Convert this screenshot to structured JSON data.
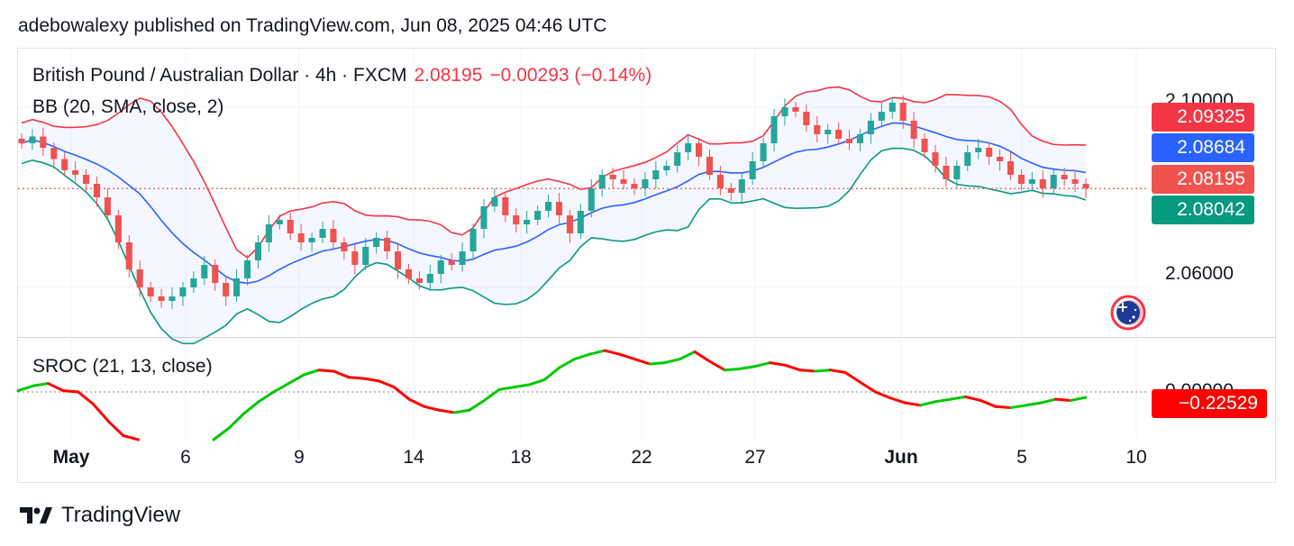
{
  "header": {
    "published_line": "adebowalexy published on TradingView.com, Jun 08, 2025 04:46 UTC"
  },
  "legend": {
    "symbol_line": "British Pound / Australian Dollar · 4h · FXCM",
    "last_price": "2.08195",
    "change": "−0.00293 (−0.14%)",
    "bb_label": "BB (20, SMA, close, 2)",
    "sroc_label": "SROC (21, 13, close)"
  },
  "price_badges": [
    {
      "label": "2.09325",
      "color": "#f23645"
    },
    {
      "label": "2.08684",
      "color": "#2962ff"
    },
    {
      "label": "2.08195",
      "color": "#ef5350"
    },
    {
      "label": "2.08042",
      "color": "#089981"
    }
  ],
  "sroc_badge": {
    "label": "−0.22529",
    "color": "#ff0000"
  },
  "y_axis_labels": {
    "upper": "2.10000",
    "lower": "2.06000",
    "sroc_zero": "0.00000"
  },
  "footer": {
    "brand": "TradingView",
    "logo": "tradingview-logo-icon"
  },
  "colors": {
    "up": "#26a69a",
    "down": "#ef5350",
    "bb_upper": "#f23645",
    "bb_basis": "#2962ff",
    "bb_lower": "#089981",
    "bb_fill": "#2962ff",
    "sroc_up": "#00c800",
    "sroc_down": "#ff0000"
  },
  "chart_data": {
    "type": "candlestick",
    "symbol": "British Pound / Australian Dollar",
    "interval": "4h",
    "x_ticks": [
      "May",
      "6",
      "9",
      "14",
      "18",
      "22",
      "27",
      "Jun",
      "5",
      "10"
    ],
    "ylim": [
      2.049,
      2.113
    ],
    "y_ticks": [
      2.06,
      2.1
    ],
    "last_close": 2.08195,
    "bollinger_bands": {
      "params": "20, SMA, close, 2",
      "upper_last": 2.09325,
      "basis_last": 2.08684,
      "lower_last": 2.08042
    },
    "close_series_approx": [
      2.092,
      2.0935,
      2.091,
      2.0885,
      2.086,
      2.085,
      2.083,
      2.08,
      2.076,
      2.07,
      2.064,
      2.06,
      2.058,
      2.057,
      2.058,
      2.06,
      2.062,
      2.065,
      2.061,
      2.058,
      2.062,
      2.066,
      2.07,
      2.074,
      2.075,
      2.072,
      2.07,
      2.071,
      2.073,
      2.07,
      2.068,
      2.065,
      2.069,
      2.071,
      2.068,
      2.064,
      2.062,
      2.061,
      2.063,
      2.066,
      2.065,
      2.068,
      2.073,
      2.078,
      2.08,
      2.076,
      2.074,
      2.075,
      2.077,
      2.079,
      2.076,
      2.072,
      2.077,
      2.082,
      2.085,
      2.084,
      2.083,
      2.082,
      2.084,
      2.086,
      2.087,
      2.09,
      2.092,
      2.089,
      2.085,
      2.082,
      2.081,
      2.084,
      2.088,
      2.092,
      2.098,
      2.1,
      2.099,
      2.096,
      2.094,
      2.095,
      2.093,
      2.092,
      2.094,
      2.097,
      2.099,
      2.101,
      2.097,
      2.093,
      2.09,
      2.087,
      2.084,
      2.087,
      2.09,
      2.091,
      2.089,
      2.088,
      2.085,
      2.083,
      2.084,
      2.082,
      2.085,
      2.084,
      2.083,
      2.08195
    ],
    "sroc": {
      "params": "21, 13, close",
      "last": -0.22529,
      "values_approx": [
        0.05,
        0.25,
        0.35,
        0.05,
        0.0,
        -0.5,
        -1.2,
        -1.8,
        -2.5,
        -3.0,
        -3.2,
        -3.0,
        -2.6,
        -2.0,
        -1.5,
        -0.9,
        -0.4,
        0.0,
        0.35,
        0.7,
        0.9,
        0.85,
        0.6,
        0.55,
        0.45,
        0.2,
        -0.3,
        -0.6,
        -0.75,
        -0.85,
        -0.75,
        -0.35,
        0.1,
        0.2,
        0.3,
        0.5,
        1.0,
        1.35,
        1.55,
        1.7,
        1.55,
        1.35,
        1.15,
        1.2,
        1.35,
        1.65,
        1.25,
        0.9,
        0.95,
        1.05,
        1.2,
        1.1,
        0.9,
        0.85,
        0.9,
        0.8,
        0.4,
        0.0,
        -0.25,
        -0.45,
        -0.55,
        -0.4,
        -0.3,
        -0.2,
        -0.35,
        -0.6,
        -0.65,
        -0.55,
        -0.45,
        -0.3,
        -0.35,
        -0.22529
      ]
    }
  }
}
